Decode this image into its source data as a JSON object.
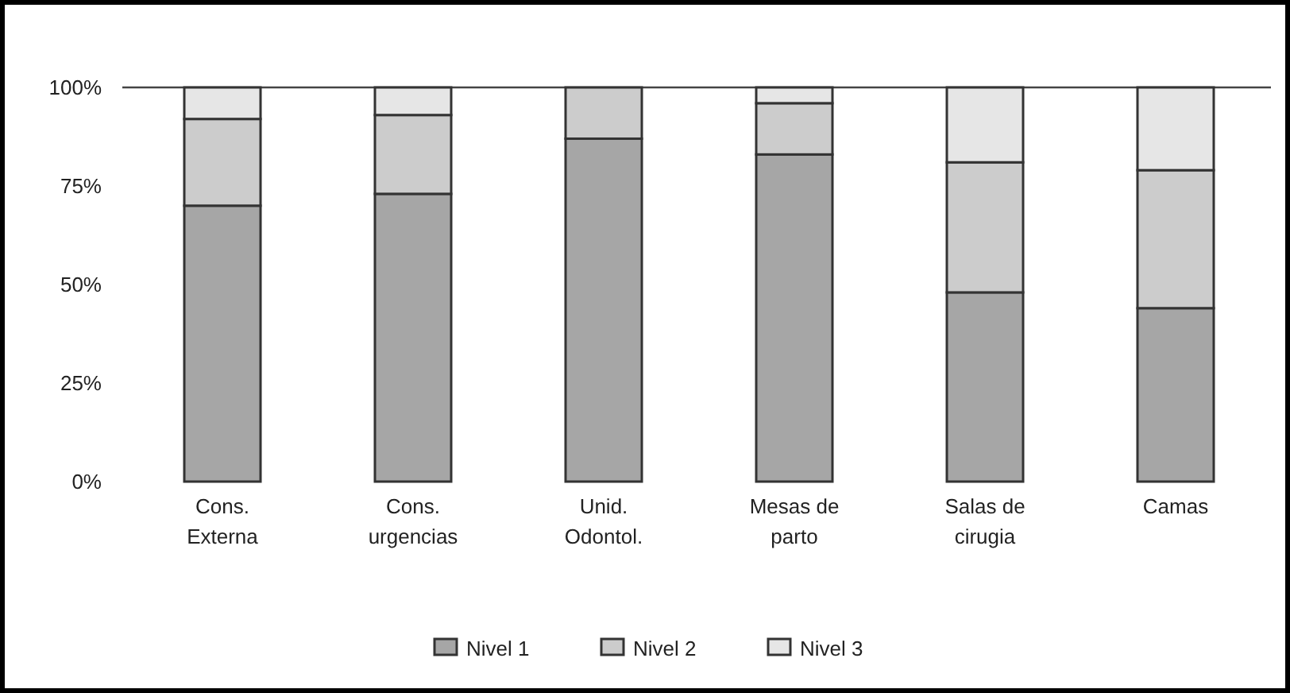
{
  "chart_data": {
    "type": "bar",
    "stacked": true,
    "categories": [
      "Cons. Externa",
      "Cons. urgencias",
      "Unid. Odontol.",
      "Mesas de parto",
      "Salas de cirugia",
      "Camas"
    ],
    "series": [
      {
        "name": "Nivel 1",
        "color": "#a6a6a6",
        "values": [
          70,
          73,
          87,
          83,
          48,
          44
        ]
      },
      {
        "name": "Nivel 2",
        "color": "#cccccc",
        "values": [
          22,
          20,
          13,
          13,
          33,
          35
        ]
      },
      {
        "name": "Nivel 3",
        "color": "#e6e6e6",
        "values": [
          8,
          7,
          0,
          4,
          19,
          21
        ]
      }
    ],
    "ylim": [
      0,
      100
    ],
    "yticks": [
      {
        "value": 0,
        "label": "0%"
      },
      {
        "value": 25,
        "label": "25%"
      },
      {
        "value": 50,
        "label": "50%"
      },
      {
        "value": 75,
        "label": "75%"
      },
      {
        "value": 100,
        "label": "100%"
      }
    ],
    "grid": false,
    "legend": "bottom"
  }
}
